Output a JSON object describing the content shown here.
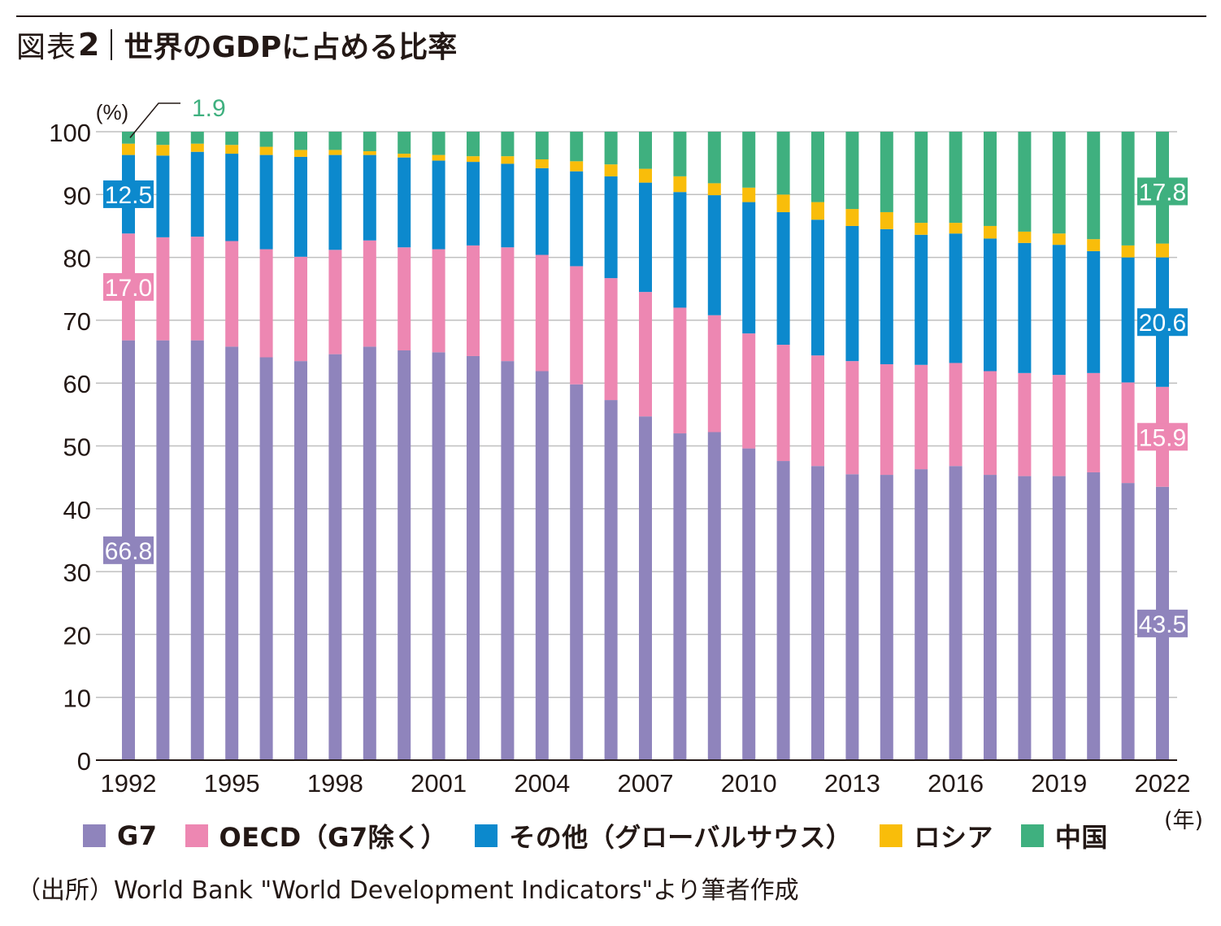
{
  "header": {
    "figure_label": "図表",
    "figure_number": "2",
    "title": "世界のGDPに占める比率"
  },
  "source": "（出所）World Bank \"World Development Indicators\"より筆者作成",
  "chart_data": {
    "type": "bar",
    "stacked": true,
    "title": "世界のGDPに占める比率",
    "ylabel": "(%)",
    "xlabel": "(年)",
    "ylim": [
      0,
      100
    ],
    "yticks": [
      "0",
      "10",
      "20",
      "30",
      "40",
      "50",
      "60",
      "70",
      "80",
      "90",
      "100"
    ],
    "xtick_labels": [
      "1992",
      "1995",
      "1998",
      "2001",
      "2004",
      "2007",
      "2010",
      "2013",
      "2016",
      "2019",
      "2022"
    ],
    "categories": [
      "1992",
      "1993",
      "1994",
      "1995",
      "1996",
      "1997",
      "1998",
      "1999",
      "2000",
      "2001",
      "2002",
      "2003",
      "2004",
      "2005",
      "2006",
      "2007",
      "2008",
      "2009",
      "2010",
      "2011",
      "2012",
      "2013",
      "2014",
      "2015",
      "2016",
      "2017",
      "2018",
      "2019",
      "2020",
      "2021",
      "2022"
    ],
    "series": [
      {
        "name": "G7",
        "color": "#8f84bc",
        "values": [
          66.8,
          66.8,
          66.8,
          65.8,
          64.1,
          63.5,
          64.6,
          65.8,
          65.2,
          64.9,
          64.3,
          63.5,
          61.9,
          59.8,
          57.3,
          54.7,
          52.0,
          52.2,
          49.6,
          47.6,
          46.8,
          45.5,
          45.4,
          46.3,
          46.8,
          45.4,
          45.2,
          45.2,
          45.8,
          44.1,
          43.5
        ]
      },
      {
        "name": "OECD（G7除く）",
        "color": "#ed87b2",
        "values": [
          17.0,
          16.4,
          16.5,
          16.8,
          17.2,
          16.6,
          16.6,
          16.9,
          16.4,
          16.4,
          17.6,
          18.1,
          18.5,
          18.8,
          19.4,
          19.8,
          20.0,
          18.6,
          18.3,
          18.5,
          17.6,
          18.0,
          17.6,
          16.6,
          16.4,
          16.5,
          16.4,
          16.1,
          15.8,
          16.0,
          15.9
        ]
      },
      {
        "name": "その他（グローバルサウス）",
        "color": "#0c89cd",
        "values": [
          12.5,
          13.0,
          13.5,
          13.9,
          15.0,
          15.9,
          15.1,
          13.6,
          14.3,
          14.1,
          13.3,
          13.3,
          13.8,
          15.1,
          16.2,
          17.4,
          18.4,
          19.1,
          20.9,
          21.1,
          21.6,
          21.5,
          21.5,
          20.7,
          20.6,
          21.1,
          20.7,
          20.7,
          19.4,
          19.9,
          20.6
        ]
      },
      {
        "name": "ロシア",
        "color": "#f9bd0a",
        "values": [
          1.8,
          1.7,
          1.3,
          1.4,
          1.3,
          1.1,
          0.8,
          0.6,
          0.6,
          0.9,
          0.9,
          1.2,
          1.4,
          1.6,
          1.9,
          2.2,
          2.5,
          1.9,
          2.3,
          2.8,
          2.8,
          2.7,
          2.7,
          1.9,
          1.7,
          2.0,
          1.8,
          1.8,
          1.9,
          1.9,
          2.2
        ]
      },
      {
        "name": "中国",
        "color": "#3fb07f",
        "values": [
          1.9,
          2.1,
          1.9,
          2.1,
          2.4,
          2.9,
          2.9,
          3.1,
          3.5,
          3.7,
          3.9,
          3.9,
          4.4,
          4.7,
          5.2,
          5.9,
          7.1,
          8.2,
          8.9,
          10.0,
          11.2,
          12.3,
          12.8,
          14.5,
          14.5,
          15.0,
          15.9,
          16.2,
          17.1,
          18.1,
          17.8
        ]
      }
    ],
    "annotations": [
      {
        "series": "中国",
        "category": "1992",
        "value": 1.9,
        "text": "1.9"
      },
      {
        "series": "その他（グローバルサウス）",
        "category": "1992",
        "value": 12.5,
        "text": "12.5"
      },
      {
        "series": "OECD（G7除く）",
        "category": "1992",
        "value": 17.0,
        "text": "17.0"
      },
      {
        "series": "G7",
        "category": "1992",
        "value": 66.8,
        "text": "66.8"
      },
      {
        "series": "中国",
        "category": "2022",
        "value": 17.8,
        "text": "17.8"
      },
      {
        "series": "その他（グローバルサウス）",
        "category": "2022",
        "value": 20.6,
        "text": "20.6"
      },
      {
        "series": "OECD（G7除く）",
        "category": "2022",
        "value": 15.9,
        "text": "15.9"
      },
      {
        "series": "G7",
        "category": "2022",
        "value": 43.5,
        "text": "43.5"
      }
    ],
    "legend": {
      "placement": "bottom",
      "items": [
        {
          "label": "G7",
          "color": "#8f84bc"
        },
        {
          "label": "OECD（G7除く）",
          "color": "#ed87b2"
        },
        {
          "label": "その他（グローバルサウス）",
          "color": "#0c89cd"
        },
        {
          "label": "ロシア",
          "color": "#f9bd0a"
        },
        {
          "label": "中国",
          "color": "#3fb07f"
        }
      ]
    }
  }
}
